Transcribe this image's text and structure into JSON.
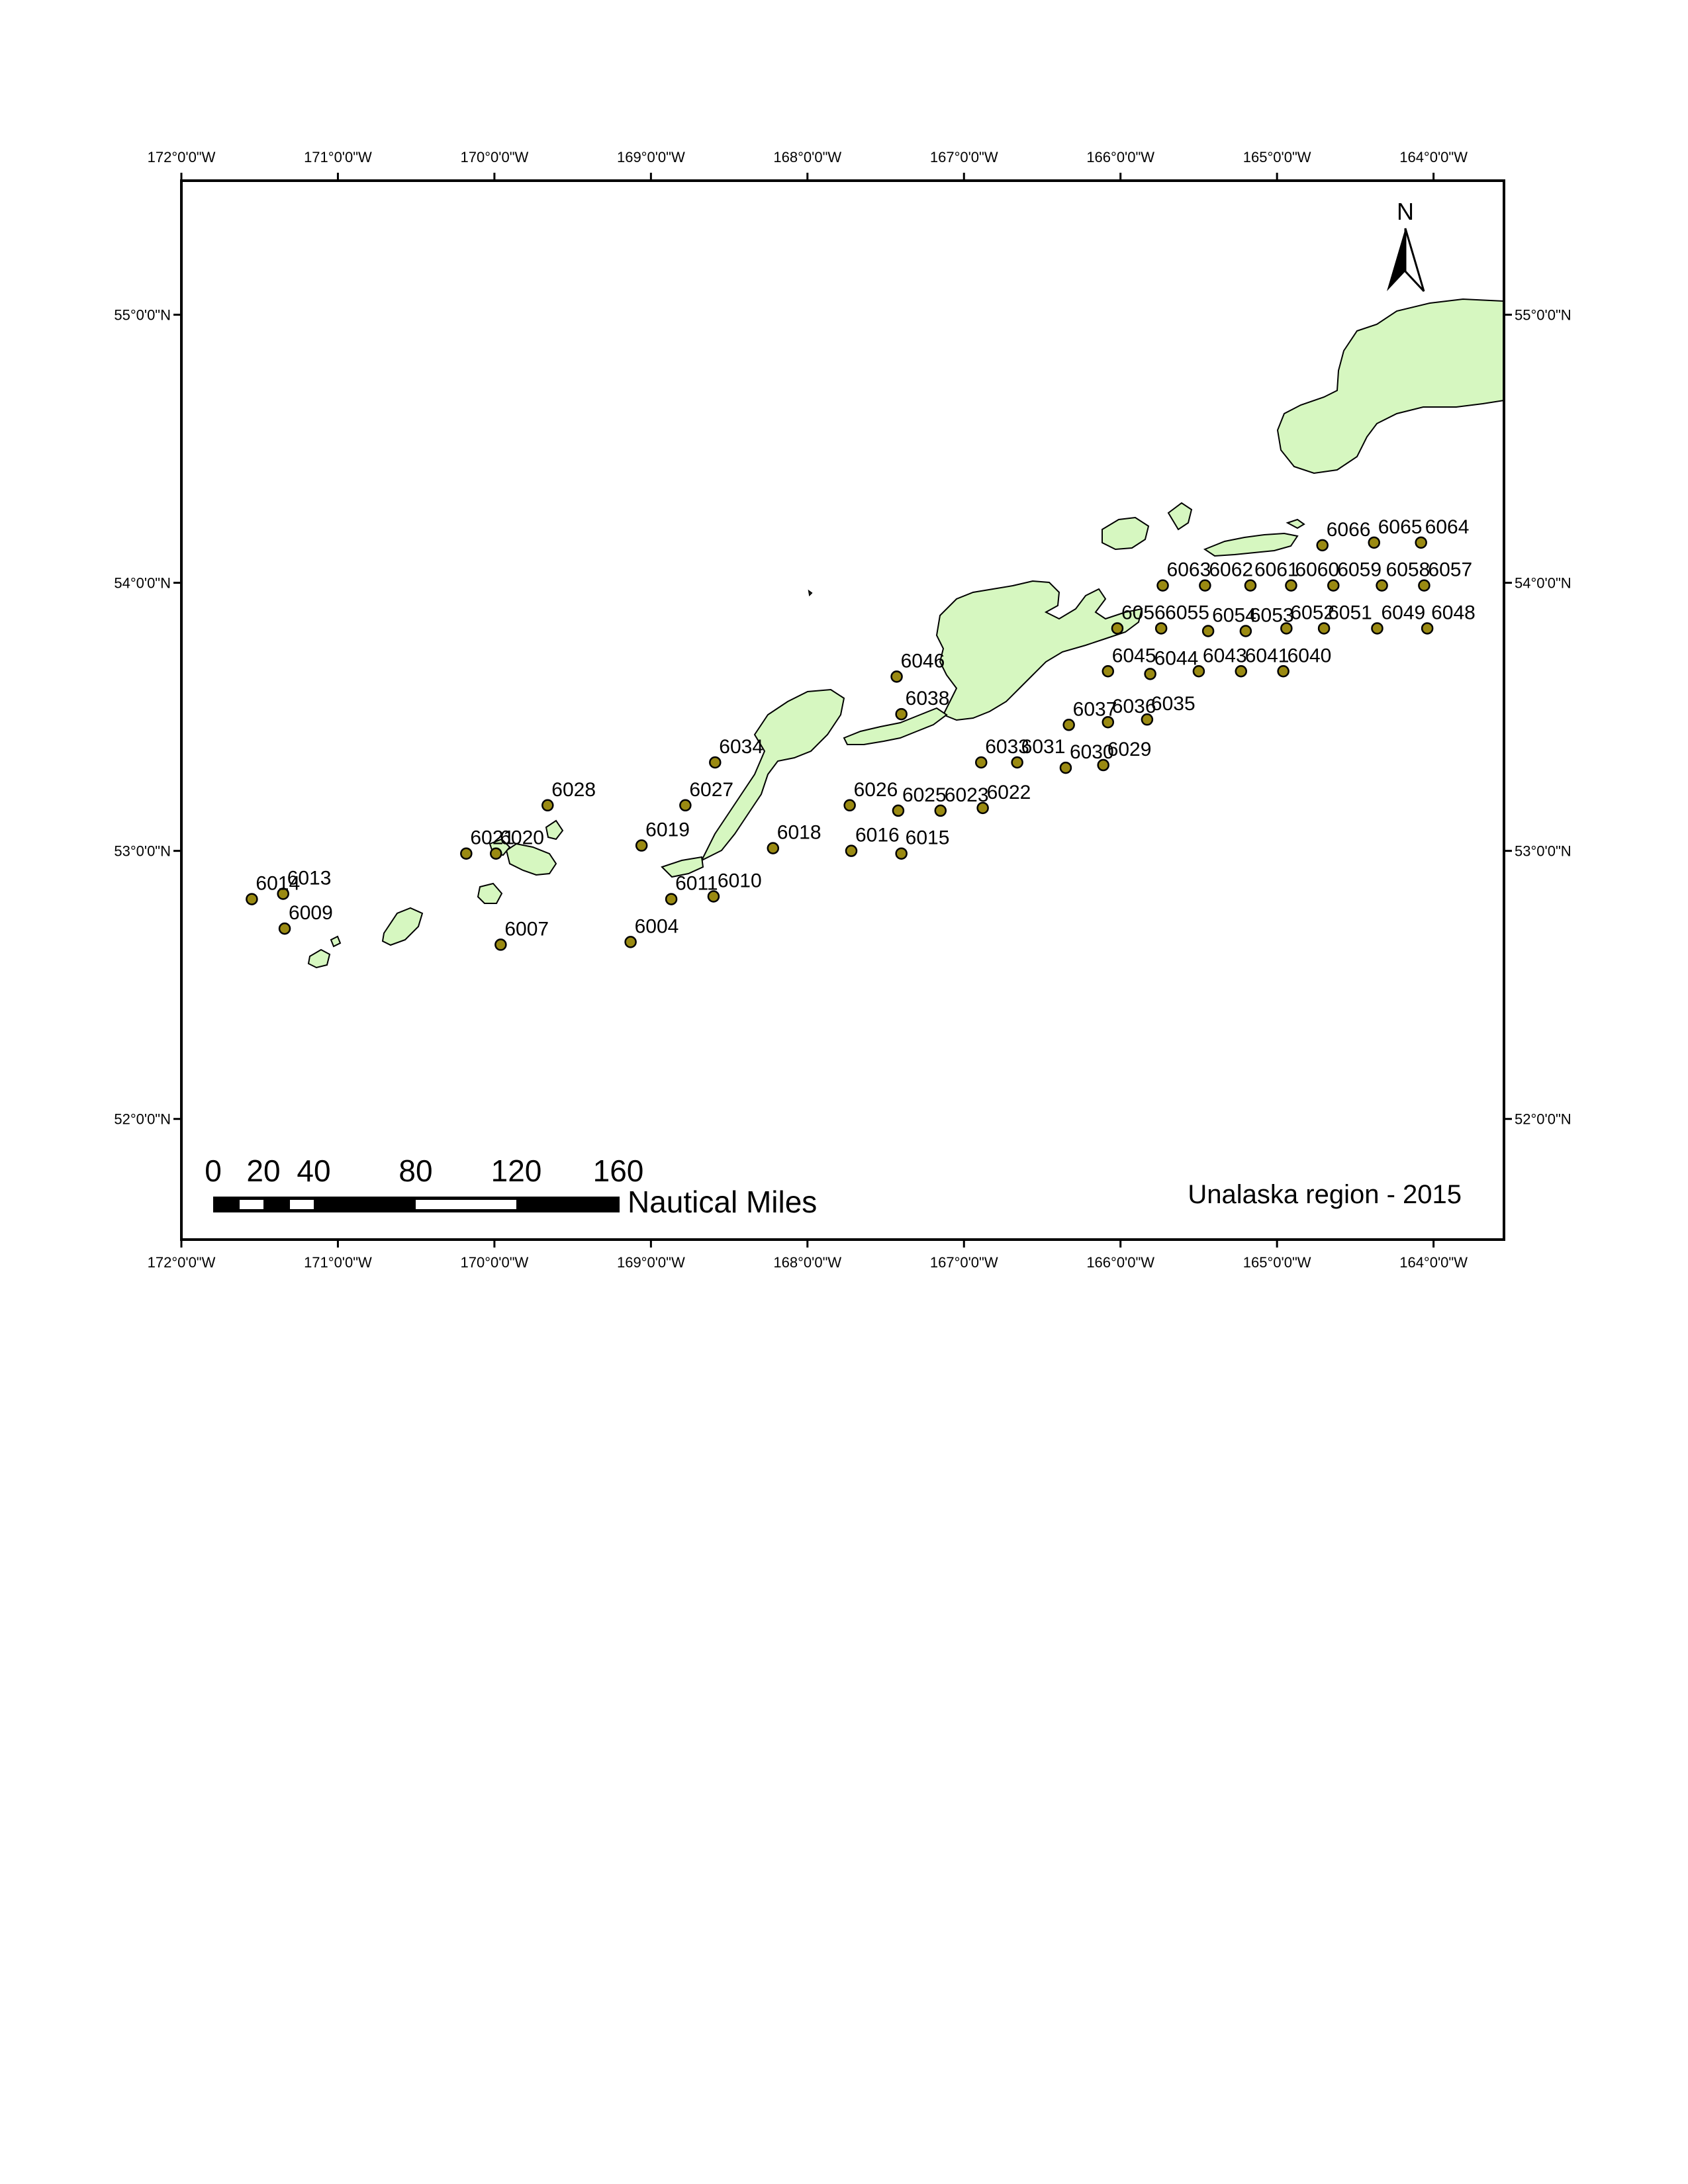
{
  "map": {
    "title": "Unalaska region - 2015",
    "colors": {
      "land": "#d6f7c0",
      "coast": "#000000",
      "station": "#9a8a12",
      "frame": "#000000"
    },
    "lon_range": [
      -172.0,
      -163.55
    ],
    "lat_range": [
      51.55,
      55.5
    ],
    "lon_ticks": [
      "172°0'0\"W",
      "171°0'0\"W",
      "170°0'0\"W",
      "169°0'0\"W",
      "168°0'0\"W",
      "167°0'0\"W",
      "166°0'0\"W",
      "165°0'0\"W",
      "164°0'0\"W"
    ],
    "lat_ticks": [
      "55°0'0\"N",
      "54°0'0\"N",
      "53°0'0\"N",
      "52°0'0\"N"
    ],
    "north_arrow": {
      "label": "N",
      "icon": "north-arrow-icon"
    },
    "scale_bar": {
      "labels": [
        "0",
        "20",
        "40",
        "80",
        "120",
        "160"
      ],
      "unit": "Nautical Miles"
    },
    "stations": [
      {
        "id": "6004",
        "lon": -169.13,
        "lat": 52.66
      },
      {
        "id": "6007",
        "lon": -169.96,
        "lat": 52.65
      },
      {
        "id": "6009",
        "lon": -171.34,
        "lat": 52.71
      },
      {
        "id": "6010",
        "lon": -168.6,
        "lat": 52.83
      },
      {
        "id": "6011",
        "lon": -168.87,
        "lat": 52.82
      },
      {
        "id": "6013",
        "lon": -171.35,
        "lat": 52.84
      },
      {
        "id": "6014",
        "lon": -171.55,
        "lat": 52.82
      },
      {
        "id": "6015",
        "lon": -167.4,
        "lat": 52.99
      },
      {
        "id": "6016",
        "lon": -167.72,
        "lat": 53.0
      },
      {
        "id": "6018",
        "lon": -168.22,
        "lat": 53.01
      },
      {
        "id": "6019",
        "lon": -169.06,
        "lat": 53.02
      },
      {
        "id": "6020",
        "lon": -169.99,
        "lat": 52.99
      },
      {
        "id": "6021",
        "lon": -170.18,
        "lat": 52.99
      },
      {
        "id": "6022",
        "lon": -166.88,
        "lat": 53.16
      },
      {
        "id": "6023",
        "lon": -167.15,
        "lat": 53.15
      },
      {
        "id": "6025",
        "lon": -167.42,
        "lat": 53.15
      },
      {
        "id": "6026",
        "lon": -167.73,
        "lat": 53.17
      },
      {
        "id": "6027",
        "lon": -168.78,
        "lat": 53.17
      },
      {
        "id": "6028",
        "lon": -169.66,
        "lat": 53.17
      },
      {
        "id": "6029",
        "lon": -166.11,
        "lat": 53.32
      },
      {
        "id": "6030",
        "lon": -166.35,
        "lat": 53.31
      },
      {
        "id": "6031",
        "lon": -166.66,
        "lat": 53.33
      },
      {
        "id": "6033",
        "lon": -166.89,
        "lat": 53.33
      },
      {
        "id": "6034",
        "lon": -168.59,
        "lat": 53.33
      },
      {
        "id": "6035",
        "lon": -165.83,
        "lat": 53.49
      },
      {
        "id": "6036",
        "lon": -166.08,
        "lat": 53.48
      },
      {
        "id": "6037",
        "lon": -166.33,
        "lat": 53.47
      },
      {
        "id": "6038",
        "lon": -167.4,
        "lat": 53.51
      },
      {
        "id": "6040",
        "lon": -164.96,
        "lat": 53.67
      },
      {
        "id": "6041",
        "lon": -165.23,
        "lat": 53.67
      },
      {
        "id": "6043",
        "lon": -165.5,
        "lat": 53.67
      },
      {
        "id": "6044",
        "lon": -165.81,
        "lat": 53.66
      },
      {
        "id": "6045",
        "lon": -166.08,
        "lat": 53.67
      },
      {
        "id": "6046",
        "lon": -167.43,
        "lat": 53.65
      },
      {
        "id": "6048",
        "lon": -164.04,
        "lat": 53.83
      },
      {
        "id": "6049",
        "lon": -164.36,
        "lat": 53.83
      },
      {
        "id": "6051",
        "lon": -164.7,
        "lat": 53.83
      },
      {
        "id": "6052",
        "lon": -164.94,
        "lat": 53.83
      },
      {
        "id": "6053",
        "lon": -165.2,
        "lat": 53.82
      },
      {
        "id": "6054",
        "lon": -165.44,
        "lat": 53.82
      },
      {
        "id": "6055",
        "lon": -165.74,
        "lat": 53.83
      },
      {
        "id": "6056",
        "lon": -166.02,
        "lat": 53.83
      },
      {
        "id": "6057",
        "lon": -164.06,
        "lat": 53.99
      },
      {
        "id": "6058",
        "lon": -164.33,
        "lat": 53.99
      },
      {
        "id": "6059",
        "lon": -164.64,
        "lat": 53.99
      },
      {
        "id": "6060",
        "lon": -164.91,
        "lat": 53.99
      },
      {
        "id": "6061",
        "lon": -165.17,
        "lat": 53.99
      },
      {
        "id": "6062",
        "lon": -165.46,
        "lat": 53.99
      },
      {
        "id": "6063",
        "lon": -165.73,
        "lat": 53.99
      },
      {
        "id": "6064",
        "lon": -164.08,
        "lat": 54.15
      },
      {
        "id": "6065",
        "lon": -164.38,
        "lat": 54.15
      },
      {
        "id": "6066",
        "lon": -164.71,
        "lat": 54.14
      }
    ]
  }
}
